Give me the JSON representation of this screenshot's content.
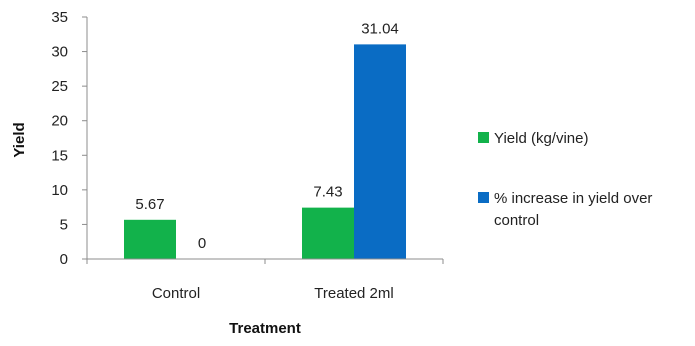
{
  "chart_data": {
    "type": "bar",
    "title": "",
    "xlabel": "Treatment",
    "ylabel": "Yield",
    "categories": [
      "Control",
      "Treated 2ml"
    ],
    "series": [
      {
        "name": "Yield (kg/vine)",
        "values": [
          5.67,
          7.43
        ],
        "color": "#12b24b"
      },
      {
        "name": "% increase in yield over control",
        "values": [
          0,
          31.04
        ],
        "color": "#0a6cc4"
      }
    ],
    "data_labels": [
      [
        "5.67",
        "7.43"
      ],
      [
        "0",
        "31.04"
      ]
    ],
    "ylim": [
      0,
      35
    ],
    "yticks": [
      "0",
      "5",
      "10",
      "15",
      "20",
      "25",
      "30",
      "35"
    ],
    "grid": false,
    "legend_position": "right"
  }
}
